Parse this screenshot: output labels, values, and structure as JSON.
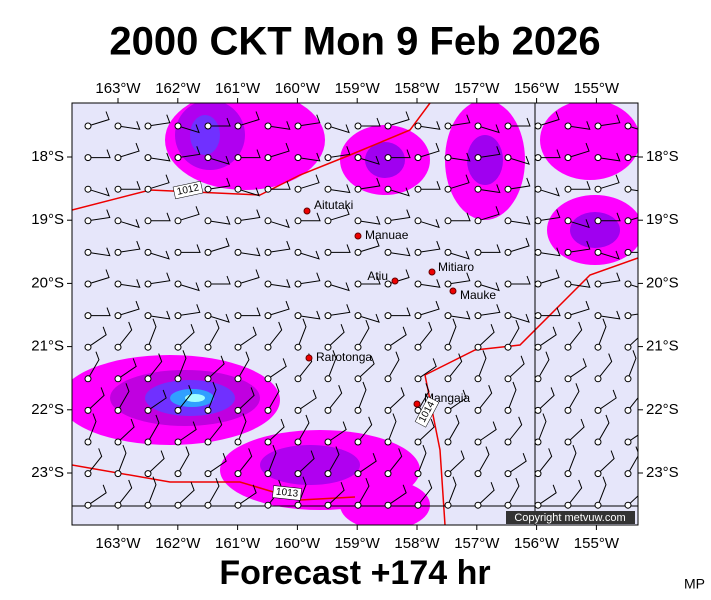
{
  "header": {
    "title": "2000 CKT Mon 9 Feb 2026"
  },
  "map": {
    "lon_labels": [
      "163°W",
      "162°W",
      "161°W",
      "160°W",
      "159°W",
      "158°W",
      "157°W",
      "156°W",
      "155°W"
    ],
    "lat_labels": [
      "18°S",
      "19°S",
      "20°S",
      "21°S",
      "22°S",
      "23°S"
    ],
    "places": [
      "Aitutaki",
      "Manuae",
      "Atiu",
      "Mitiaro",
      "Mauke",
      "Rarotonga",
      "Mangaia"
    ],
    "isobar_labels": [
      "1012",
      "1013",
      "1014"
    ],
    "copyright": "Copyright metvuw.com"
  },
  "footer": {
    "forecast": "Forecast +174 hr",
    "credit": "MP"
  }
}
